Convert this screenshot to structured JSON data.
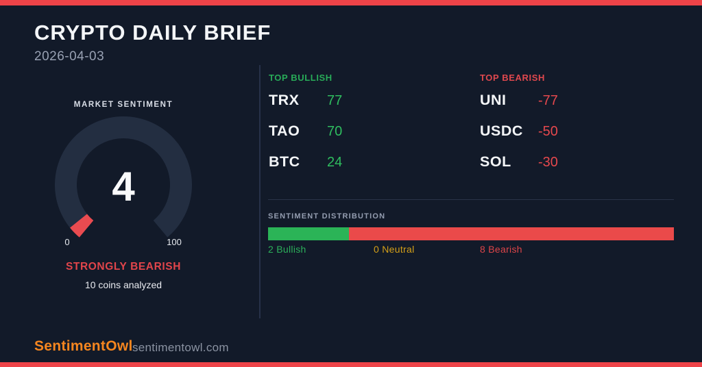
{
  "header": {
    "title": "CRYPTO DAILY BRIEF",
    "date": "2026-04-03"
  },
  "gauge": {
    "label": "MARKET SENTIMENT",
    "value": "4",
    "min": "0",
    "max": "100",
    "status": "STRONGLY BEARISH",
    "subtitle": "10 coins analyzed"
  },
  "bullish": {
    "heading": "TOP BULLISH",
    "items": [
      {
        "symbol": "TRX",
        "score": "77"
      },
      {
        "symbol": "TAO",
        "score": "70"
      },
      {
        "symbol": "BTC",
        "score": "24"
      }
    ]
  },
  "bearish": {
    "heading": "TOP BEARISH",
    "items": [
      {
        "symbol": "UNI",
        "score": "-77"
      },
      {
        "symbol": "USDC",
        "score": "-50"
      },
      {
        "symbol": "SOL",
        "score": "-30"
      }
    ]
  },
  "distribution": {
    "heading": "SENTIMENT DISTRIBUTION",
    "segments": [
      {
        "label": "2 Bullish",
        "count": 2,
        "color": "#2bb457",
        "label_color": "#2cb05a"
      },
      {
        "label": "0 Neutral",
        "count": 0,
        "color": "#d5a018",
        "label_color": "#d5a018"
      },
      {
        "label": "8 Bearish",
        "count": 8,
        "color": "#ea4a4a",
        "label_color": "#dd4549"
      }
    ]
  },
  "footer": {
    "brand": "SentimentOwl",
    "site": "sentimentowl.com"
  },
  "colors": {
    "accent_red": "#ee4348",
    "background": "#121a29",
    "gauge_track": "#232e41",
    "gauge_fill": "#ea4b50",
    "green_label": "#28ab58",
    "green_value": "#2fbd5f",
    "red_label": "#e0484e",
    "red_value": "#e5484d",
    "status_red": "#e2454b",
    "orange_brand": "#f6861f"
  },
  "chart_data": [
    {
      "type": "gauge",
      "title": "MARKET SENTIMENT",
      "value": 4,
      "range": [
        0,
        100
      ],
      "start_angle_deg": 230,
      "sweep_deg": 280,
      "status": "STRONGLY BEARISH",
      "note": "10 coins analyzed"
    },
    {
      "type": "table",
      "title": "TOP BULLISH",
      "columns": [
        "symbol",
        "score"
      ],
      "rows": [
        [
          "TRX",
          77
        ],
        [
          "TAO",
          70
        ],
        [
          "BTC",
          24
        ]
      ]
    },
    {
      "type": "table",
      "title": "TOP BEARISH",
      "columns": [
        "symbol",
        "score"
      ],
      "rows": [
        [
          "UNI",
          -77
        ],
        [
          "USDC",
          -50
        ],
        [
          "SOL",
          -30
        ]
      ]
    },
    {
      "type": "bar",
      "title": "SENTIMENT DISTRIBUTION",
      "categories": [
        "Bullish",
        "Neutral",
        "Bearish"
      ],
      "values": [
        2,
        0,
        8
      ],
      "total": 10,
      "orientation": "horizontal-stacked"
    }
  ]
}
